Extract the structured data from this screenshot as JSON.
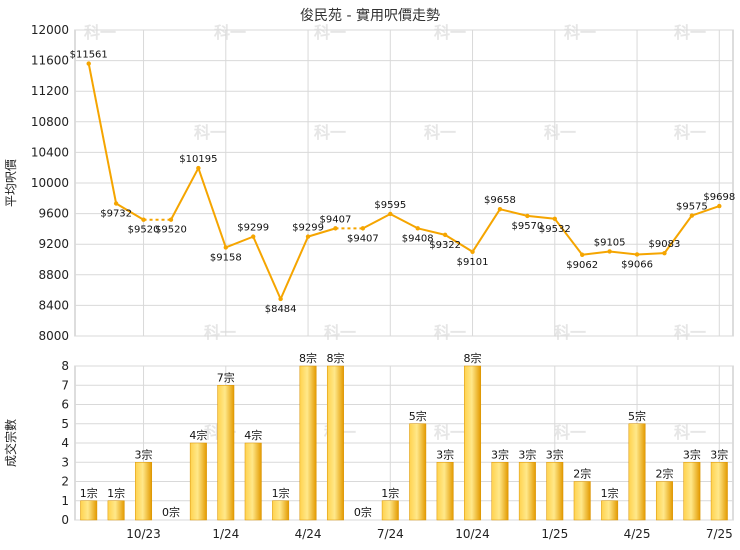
{
  "title": "俊民苑 - 實用呎價走勢",
  "watermark": "科一",
  "colors": {
    "line": "#f5a500",
    "bar_light": "#ffe27a",
    "bar_dark": "#e8a000",
    "grid": "#d9d9d9"
  },
  "chart_data": [
    {
      "type": "line",
      "ylabel": "平均呎價",
      "ylim": [
        8000,
        12000
      ],
      "yticks": [
        8000,
        8400,
        8800,
        9200,
        9600,
        10000,
        10400,
        10800,
        11200,
        11600,
        12000
      ],
      "points": [
        {
          "i": 0,
          "v": 11561,
          "label": "$11561"
        },
        {
          "i": 1,
          "v": 9732,
          "label": "$9732"
        },
        {
          "i": 2,
          "v": 9520,
          "label": "$9520"
        },
        {
          "i": 3,
          "v": 9520,
          "label": "$9520"
        },
        {
          "i": 4,
          "v": 10195,
          "label": "$10195"
        },
        {
          "i": 5,
          "v": 9158,
          "label": "$9158"
        },
        {
          "i": 6,
          "v": 9299,
          "label": "$9299"
        },
        {
          "i": 7,
          "v": 8484,
          "label": "$8484"
        },
        {
          "i": 8,
          "v": 9299,
          "label": "$9299"
        },
        {
          "i": 9,
          "v": 9407,
          "label": "$9407"
        },
        {
          "i": 10,
          "v": 9407,
          "label": "$9407"
        },
        {
          "i": 11,
          "v": 9595,
          "label": "$9595"
        },
        {
          "i": 12,
          "v": 9408,
          "label": "$9408"
        },
        {
          "i": 13,
          "v": 9322,
          "label": "$9322"
        },
        {
          "i": 14,
          "v": 9101,
          "label": "$9101"
        },
        {
          "i": 15,
          "v": 9658,
          "label": "$9658"
        },
        {
          "i": 16,
          "v": 9570,
          "label": "$9570"
        },
        {
          "i": 17,
          "v": 9532,
          "label": "$9532"
        },
        {
          "i": 18,
          "v": 9062,
          "label": "$9062"
        },
        {
          "i": 19,
          "v": 9105,
          "label": "$9105"
        },
        {
          "i": 20,
          "v": 9066,
          "label": "$9066"
        },
        {
          "i": 21,
          "v": 9083,
          "label": "$9083"
        },
        {
          "i": 22,
          "v": 9575,
          "label": "$9575"
        },
        {
          "i": 23,
          "v": 9698,
          "label": "$9698"
        }
      ],
      "dashed_segments": [
        [
          2,
          3
        ],
        [
          9,
          10
        ]
      ]
    },
    {
      "type": "bar",
      "ylabel": "成交宗數",
      "ylim": [
        0,
        8
      ],
      "yticks": [
        0,
        1,
        2,
        3,
        4,
        5,
        6,
        7,
        8
      ],
      "values": [
        1,
        1,
        3,
        0,
        4,
        7,
        4,
        1,
        8,
        8,
        0,
        1,
        5,
        3,
        8,
        3,
        3,
        3,
        2,
        1,
        5,
        2,
        3,
        3
      ],
      "labels": [
        "1宗",
        "1宗",
        "3宗",
        "0宗",
        "4宗",
        "7宗",
        "4宗",
        "1宗",
        "8宗",
        "8宗",
        "0宗",
        "1宗",
        "5宗",
        "3宗",
        "8宗",
        "3宗",
        "3宗",
        "3宗",
        "2宗",
        "1宗",
        "5宗",
        "2宗",
        "3宗",
        "3宗"
      ],
      "x_ticks": [
        {
          "i": 2,
          "label": "10/23"
        },
        {
          "i": 5,
          "label": "1/24"
        },
        {
          "i": 8,
          "label": "4/24"
        },
        {
          "i": 11,
          "label": "7/24"
        },
        {
          "i": 14,
          "label": "10/24"
        },
        {
          "i": 17,
          "label": "1/25"
        },
        {
          "i": 20,
          "label": "4/25"
        },
        {
          "i": 23,
          "label": "7/25"
        }
      ]
    }
  ]
}
